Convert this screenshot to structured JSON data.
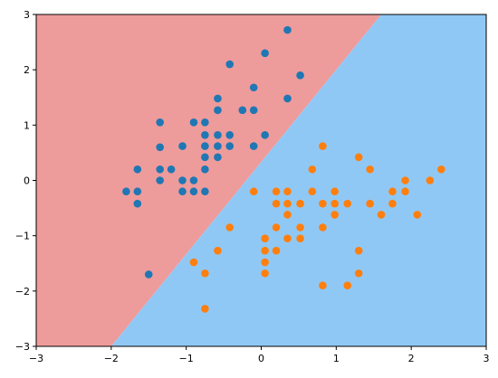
{
  "chart_data": {
    "type": "scatter",
    "title": "",
    "xlabel": "",
    "ylabel": "",
    "xlim": [
      -3,
      3
    ],
    "ylim": [
      -3,
      3
    ],
    "xticks": [
      -3,
      -2,
      -1,
      0,
      1,
      2,
      3
    ],
    "yticks": [
      -3,
      -2,
      -1,
      0,
      1,
      2,
      3
    ],
    "grid": false,
    "background_regions": [
      {
        "class": "blue-series",
        "color": "#EE9B9B",
        "side": "upper-left"
      },
      {
        "class": "orange-series",
        "color": "#90C8F5",
        "side": "lower-right"
      }
    ],
    "decision_boundary": {
      "from": [
        -2.0,
        -3.0
      ],
      "to": [
        1.6,
        3.0
      ]
    },
    "series": [
      {
        "color": "#1F77B4",
        "points": [
          [
            -1.8,
            -0.2
          ],
          [
            -1.65,
            -0.2
          ],
          [
            -1.65,
            -0.42
          ],
          [
            -1.65,
            0.2
          ],
          [
            -1.5,
            -1.7
          ],
          [
            -1.35,
            0.0
          ],
          [
            -1.35,
            0.2
          ],
          [
            -1.35,
            0.6
          ],
          [
            -1.35,
            1.05
          ],
          [
            -1.2,
            0.2
          ],
          [
            -1.05,
            0.62
          ],
          [
            -1.05,
            0.0
          ],
          [
            -1.05,
            -0.2
          ],
          [
            -0.9,
            1.05
          ],
          [
            -0.9,
            0.0
          ],
          [
            -0.9,
            -0.2
          ],
          [
            -0.75,
            1.05
          ],
          [
            -0.75,
            0.82
          ],
          [
            -0.75,
            0.62
          ],
          [
            -0.75,
            0.42
          ],
          [
            -0.75,
            0.2
          ],
          [
            -0.75,
            -0.2
          ],
          [
            -0.58,
            1.48
          ],
          [
            -0.58,
            1.27
          ],
          [
            -0.58,
            0.82
          ],
          [
            -0.58,
            0.62
          ],
          [
            -0.58,
            0.42
          ],
          [
            -0.42,
            2.1
          ],
          [
            -0.42,
            0.82
          ],
          [
            -0.42,
            0.62
          ],
          [
            -0.25,
            1.27
          ],
          [
            -0.1,
            1.68
          ],
          [
            -0.1,
            1.27
          ],
          [
            -0.1,
            0.62
          ],
          [
            0.05,
            2.3
          ],
          [
            0.05,
            0.82
          ],
          [
            0.35,
            2.72
          ],
          [
            0.35,
            1.48
          ],
          [
            0.52,
            1.9
          ]
        ]
      },
      {
        "color": "#FF7F0E",
        "points": [
          [
            -0.9,
            -1.48
          ],
          [
            -0.75,
            -1.68
          ],
          [
            -0.75,
            -2.32
          ],
          [
            -0.58,
            -1.27
          ],
          [
            -0.42,
            -0.85
          ],
          [
            -0.1,
            -0.2
          ],
          [
            0.05,
            -1.05
          ],
          [
            0.05,
            -1.27
          ],
          [
            0.05,
            -1.48
          ],
          [
            0.05,
            -1.68
          ],
          [
            0.2,
            -0.2
          ],
          [
            0.2,
            -0.42
          ],
          [
            0.2,
            -0.85
          ],
          [
            0.2,
            -1.27
          ],
          [
            0.35,
            -0.2
          ],
          [
            0.35,
            -0.42
          ],
          [
            0.35,
            -0.62
          ],
          [
            0.35,
            -1.05
          ],
          [
            0.52,
            -0.42
          ],
          [
            0.52,
            -0.85
          ],
          [
            0.52,
            -1.05
          ],
          [
            0.68,
            0.2
          ],
          [
            0.68,
            -0.2
          ],
          [
            0.82,
            0.62
          ],
          [
            0.82,
            -0.42
          ],
          [
            0.82,
            -0.85
          ],
          [
            0.82,
            -1.9
          ],
          [
            0.98,
            -0.2
          ],
          [
            0.98,
            -0.42
          ],
          [
            0.98,
            -0.62
          ],
          [
            1.15,
            -0.42
          ],
          [
            1.15,
            -1.9
          ],
          [
            1.3,
            0.42
          ],
          [
            1.3,
            -1.27
          ],
          [
            1.3,
            -1.68
          ],
          [
            1.45,
            0.2
          ],
          [
            1.45,
            -0.42
          ],
          [
            1.6,
            -0.62
          ],
          [
            1.75,
            -0.2
          ],
          [
            1.75,
            -0.42
          ],
          [
            1.92,
            0.0
          ],
          [
            1.92,
            -0.2
          ],
          [
            2.08,
            -0.62
          ],
          [
            2.25,
            0.0
          ],
          [
            2.4,
            0.2
          ]
        ]
      }
    ]
  }
}
